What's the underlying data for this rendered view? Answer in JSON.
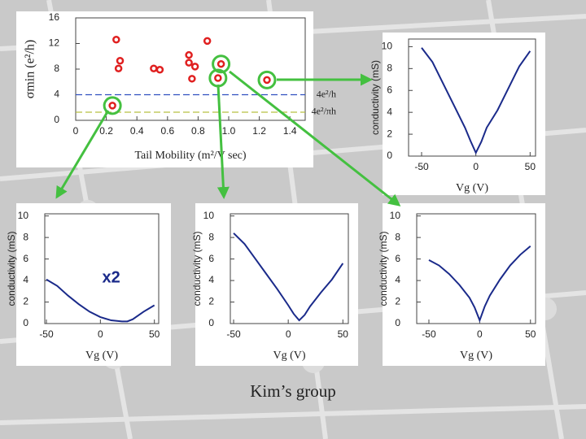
{
  "chart_data": [
    {
      "type": "scatter",
      "x_label": "Tail Mobility (m²/V sec)",
      "y_label": "σmin (e²/h)",
      "color": "#e02020",
      "highlight_color": "#44c040",
      "x": [
        0.265,
        0.29,
        0.28,
        0.51,
        0.55,
        0.74,
        0.74,
        0.78,
        0.76,
        0.86,
        0.95,
        0.93,
        1.25,
        0.24
      ],
      "y": [
        12.6,
        9.3,
        8.1,
        8.1,
        7.9,
        10.2,
        9.0,
        8.4,
        6.5,
        12.4,
        8.8,
        6.6,
        6.3,
        2.3
      ],
      "highlight": [
        13,
        10,
        11,
        12
      ],
      "xlim": [
        0,
        1.5
      ],
      "xticks": [
        0,
        0.2,
        0.4,
        0.6,
        0.8,
        {
          "value": 1,
          "label": "1.0"
        },
        1.2,
        1.4
      ],
      "ylim": [
        0,
        16
      ],
      "yticks": [
        0,
        4,
        8,
        12,
        16
      ],
      "reference_lines": [
        {
          "value": 4,
          "label": "4e²/h",
          "color": "#3050c0"
        },
        {
          "value": 1.27,
          "label": "4e²/πh",
          "color": "#b8c040"
        }
      ]
    },
    {
      "type": "line",
      "x_label": "Vg (V)",
      "y_label": "conductivity (mS)",
      "color": "#1a2a8a",
      "x": [
        -50,
        -40,
        -30,
        -20,
        -10,
        -5,
        0,
        5,
        10,
        20,
        30,
        40,
        50
      ],
      "values": [
        9.9,
        8.6,
        6.6,
        4.6,
        2.6,
        1.4,
        0.3,
        1.3,
        2.6,
        4.2,
        6.2,
        8.2,
        9.6
      ],
      "xlim": [
        -62,
        55
      ],
      "xticks": [
        -50,
        0,
        50
      ],
      "ylim": [
        0,
        10.7
      ],
      "yticks": [
        0,
        2,
        4,
        6,
        8,
        10
      ]
    },
    {
      "type": "line",
      "x_label": "Vg (V)",
      "y_label": "conductivity (mS)",
      "color": "#1a2a8a",
      "annotation": "x2",
      "x": [
        -50,
        -40,
        -30,
        -20,
        -10,
        0,
        10,
        20,
        25,
        30,
        40,
        50
      ],
      "values": [
        4.1,
        3.5,
        2.6,
        1.8,
        1.1,
        0.6,
        0.3,
        0.2,
        0.2,
        0.4,
        1.1,
        1.7
      ],
      "xlim": [
        -51.5,
        54
      ],
      "xticks": [
        -50,
        0,
        50
      ],
      "ylim": [
        0,
        10.2
      ],
      "yticks": [
        0,
        2,
        4,
        6,
        8,
        10
      ]
    },
    {
      "type": "line",
      "x_label": "Vg (V)",
      "y_label": "conductivity (mS)",
      "color": "#1a2a8a",
      "x": [
        -50,
        -40,
        -30,
        -20,
        -10,
        0,
        5,
        10,
        15,
        20,
        30,
        40,
        50
      ],
      "values": [
        8.4,
        7.4,
        6.0,
        4.6,
        3.2,
        1.7,
        0.9,
        0.3,
        0.8,
        1.6,
        2.9,
        4.1,
        5.6
      ],
      "xlim": [
        -53,
        55
      ],
      "xticks": [
        -50,
        0,
        50
      ],
      "ylim": [
        0,
        10.2
      ],
      "yticks": [
        0,
        2,
        4,
        6,
        8,
        10
      ]
    },
    {
      "type": "line",
      "x_label": "Vg (V)",
      "y_label": "conductivity (mS)",
      "color": "#1a2a8a",
      "x": [
        -50,
        -40,
        -30,
        -20,
        -10,
        -5,
        0,
        5,
        10,
        20,
        30,
        40,
        50
      ],
      "values": [
        5.9,
        5.4,
        4.6,
        3.6,
        2.4,
        1.5,
        0.3,
        1.6,
        2.6,
        4.1,
        5.4,
        6.4,
        7.2
      ],
      "xlim": [
        -62,
        55
      ],
      "xticks": [
        -50,
        0,
        50
      ],
      "ylim": [
        0,
        10.2
      ],
      "yticks": [
        0,
        2,
        4,
        6,
        8,
        10
      ]
    }
  ],
  "footer": "Kim’s group"
}
